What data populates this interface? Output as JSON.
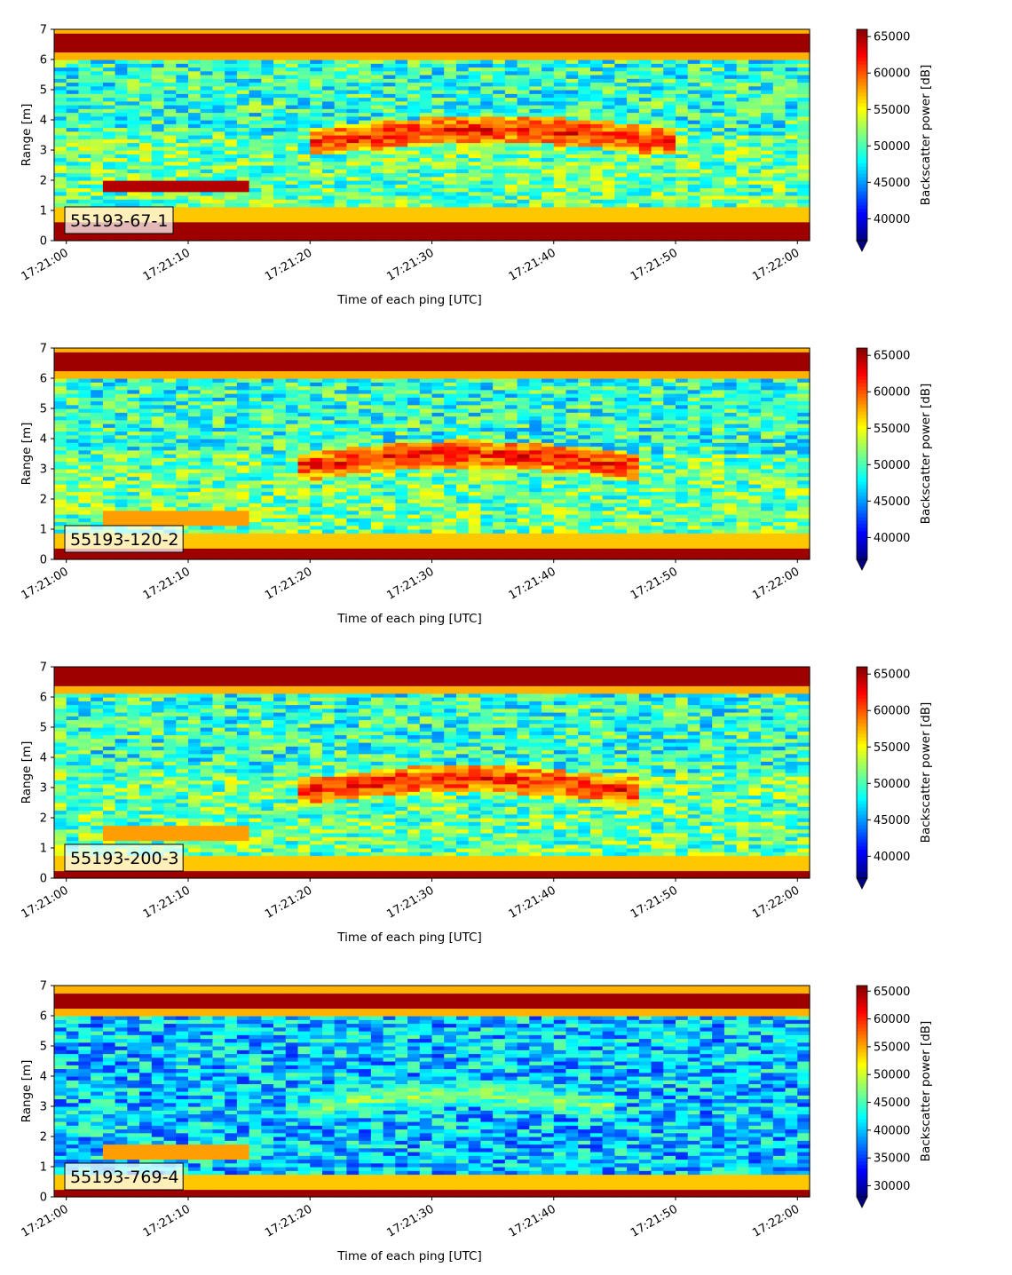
{
  "chart_data": [
    {
      "type": "heatmap",
      "label": "55193-67-1",
      "xlabel": "Time of each ping [UTC]",
      "ylabel": "Range [m]",
      "x_ticks": [
        "17:21:00",
        "17:21:10",
        "17:21:20",
        "17:21:30",
        "17:21:40",
        "17:21:50",
        "17:22:00"
      ],
      "xlim_seconds_after_17_21_00": [
        -1,
        61
      ],
      "y_ticks": [
        0,
        1,
        2,
        3,
        4,
        5,
        6,
        7
      ],
      "ylim": [
        0,
        7
      ],
      "colorbar": {
        "label": "Backscatter power [dB]",
        "ticks": [
          40000,
          45000,
          50000,
          55000,
          60000,
          65000
        ],
        "range": [
          37000,
          66000
        ],
        "colormap": "jet"
      },
      "features": {
        "top_band_range_m": 6.6,
        "bottom_band_range_m": 0.6,
        "layer_peak_range_m": 3.5,
        "layer_start_s": 20,
        "layer_end_s": 50,
        "early_blob_range_m": 1.8
      }
    },
    {
      "type": "heatmap",
      "label": "55193-120-2",
      "xlabel": "Time of each ping [UTC]",
      "ylabel": "Range [m]",
      "x_ticks": [
        "17:21:00",
        "17:21:10",
        "17:21:20",
        "17:21:30",
        "17:21:40",
        "17:21:50",
        "17:22:00"
      ],
      "xlim_seconds_after_17_21_00": [
        -1,
        61
      ],
      "y_ticks": [
        0,
        1,
        2,
        3,
        4,
        5,
        6,
        7
      ],
      "ylim": [
        0,
        7
      ],
      "colorbar": {
        "label": "Backscatter power [dB]",
        "ticks": [
          40000,
          45000,
          50000,
          55000,
          60000,
          65000
        ],
        "range": [
          37000,
          66000
        ],
        "colormap": "jet"
      },
      "features": {
        "top_band_range_m": 6.6,
        "bottom_band_range_m": 0.4,
        "layer_peak_range_m": 3.3,
        "layer_start_s": 19,
        "layer_end_s": 47,
        "early_blob_range_m": 1.4
      }
    },
    {
      "type": "heatmap",
      "label": "55193-200-3",
      "xlabel": "Time of each ping [UTC]",
      "ylabel": "Range [m]",
      "x_ticks": [
        "17:21:00",
        "17:21:10",
        "17:21:20",
        "17:21:30",
        "17:21:40",
        "17:21:50",
        "17:22:00"
      ],
      "xlim_seconds_after_17_21_00": [
        -1,
        61
      ],
      "y_ticks": [
        0,
        1,
        2,
        3,
        4,
        5,
        6,
        7
      ],
      "ylim": [
        0,
        7
      ],
      "colorbar": {
        "label": "Backscatter power [dB]",
        "ticks": [
          40000,
          45000,
          50000,
          55000,
          60000,
          65000
        ],
        "range": [
          37000,
          66000
        ],
        "colormap": "jet"
      },
      "features": {
        "top_band_range_m": 6.65,
        "bottom_band_range_m": 0.3,
        "layer_peak_range_m": 3.1,
        "layer_start_s": 19,
        "layer_end_s": 47,
        "early_blob_range_m": 1.5
      }
    },
    {
      "type": "heatmap",
      "label": "55193-769-4",
      "xlabel": "Time of each ping [UTC]",
      "ylabel": "Range [m]",
      "x_ticks": [
        "17:21:00",
        "17:21:10",
        "17:21:20",
        "17:21:30",
        "17:21:40",
        "17:21:50",
        "17:22:00"
      ],
      "xlim_seconds_after_17_21_00": [
        -1,
        61
      ],
      "y_ticks": [
        0,
        1,
        2,
        3,
        4,
        5,
        6,
        7
      ],
      "ylim": [
        0,
        7
      ],
      "colorbar": {
        "label": "Backscatter power [dB]",
        "ticks": [
          30000,
          35000,
          40000,
          45000,
          50000,
          55000,
          60000,
          65000
        ],
        "range": [
          28000,
          66000
        ],
        "colormap": "jet"
      },
      "features": {
        "top_band_range_m": 6.5,
        "bottom_band_range_m": 0.2,
        "layer_peak_range_m": 3.2,
        "layer_start_s": 20,
        "layer_end_s": 45,
        "early_blob_range_m": 1.5
      }
    }
  ]
}
